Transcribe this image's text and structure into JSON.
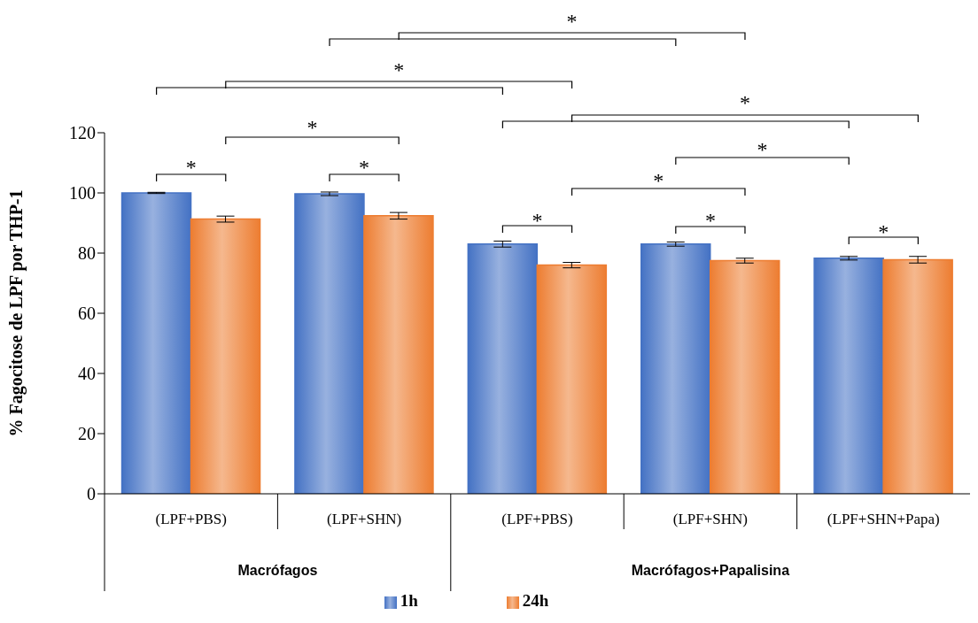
{
  "chart_data": {
    "type": "bar",
    "ylabel": "% Fagocitose de LPF  por THP-1",
    "categories": [
      "(LPF+PBS)",
      "(LPF+SHN)",
      "(LPF+PBS)",
      "(LPF+SHN)",
      "(LPF+SHN+Papa)"
    ],
    "series": [
      {
        "name": "1h",
        "color": "#4472c4",
        "values": [
          100,
          99.7,
          83.0,
          83.0,
          78.3
        ],
        "errors": [
          0.2,
          0.6,
          1.0,
          0.7,
          0.6
        ]
      },
      {
        "name": "24h",
        "color": "#ed7d31",
        "values": [
          91.3,
          92.4,
          76.0,
          77.5,
          77.8
        ],
        "errors": [
          1.0,
          1.1,
          0.9,
          0.8,
          1.1
        ]
      }
    ],
    "ylim": [
      0,
      120
    ],
    "yticks": [
      0,
      20,
      40,
      60,
      80,
      100,
      120
    ],
    "legend": "bottom",
    "annotations": [
      "*",
      "*",
      "*",
      "*",
      "*",
      "*",
      "*",
      "*",
      "*",
      "*",
      "*",
      "Macrófagos",
      "Macrófagos+Papalisina"
    ]
  }
}
